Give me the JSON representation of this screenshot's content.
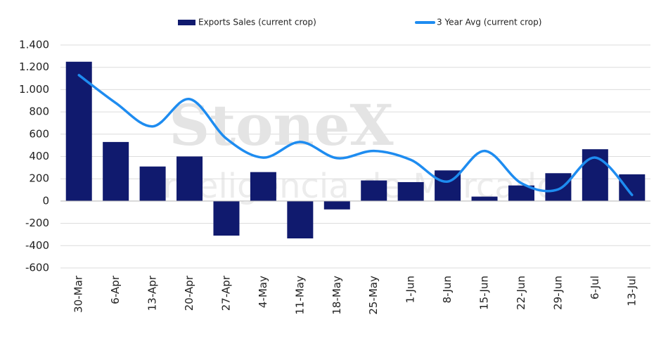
{
  "chart_data": {
    "type": "bar_line",
    "watermark": [
      "StoneX",
      "Inteligencia de Mercado"
    ],
    "categories": [
      "30-Mar",
      "6-Apr",
      "13-Apr",
      "20-Apr",
      "27-Apr",
      "4-May",
      "11-May",
      "18-May",
      "25-May",
      "1-Jun",
      "8-Jun",
      "15-Jun",
      "22-Jun",
      "29-Jun",
      "6-Jul",
      "13-Jul"
    ],
    "series": [
      {
        "name": "Exports Sales (current crop)",
        "type": "bar",
        "color": "#101a6e",
        "values": [
          1250,
          530,
          310,
          400,
          -310,
          260,
          -335,
          -75,
          185,
          170,
          275,
          40,
          140,
          250,
          465,
          240
        ]
      },
      {
        "name": "3 Year Avg (current crop)",
        "type": "line",
        "color": "#1e8cf0",
        "values": [
          1130,
          880,
          670,
          915,
          560,
          390,
          530,
          385,
          450,
          370,
          175,
          450,
          160,
          105,
          390,
          55
        ]
      }
    ],
    "ylim": [
      -600,
      1400
    ],
    "yticks": [
      -600,
      -400,
      -200,
      0,
      200,
      400,
      600,
      800,
      {
        "value": 1000,
        "label": "1.000"
      },
      {
        "value": 1200,
        "label": "1.200"
      },
      {
        "value": 1400,
        "label": "1.400"
      }
    ],
    "grid": true,
    "legend": "top"
  }
}
